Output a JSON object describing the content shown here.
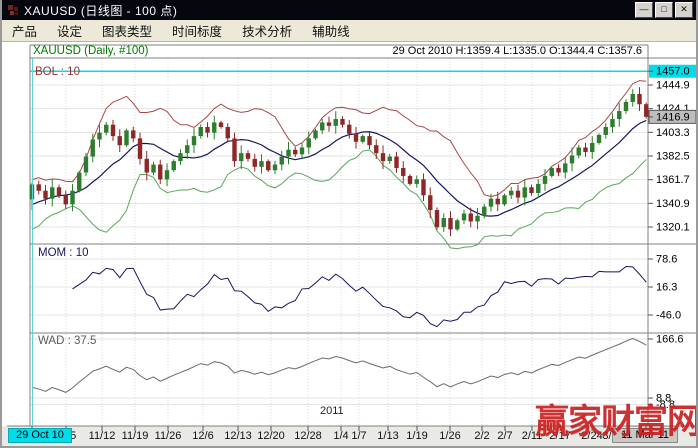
{
  "window": {
    "title": "XAUUSD (日线图 - 100 点)",
    "buttons": {
      "minimize": "—",
      "maximize": "□",
      "close": "✕"
    }
  },
  "menu": {
    "items": [
      "产品",
      "设定",
      "图表类型",
      "时间标度",
      "技术分析",
      "辅助线"
    ]
  },
  "info_bar": {
    "text": "29 Oct 2010 H:1359.4 L:1335.0 O:1344.4 C:1357.6"
  },
  "chart_labels": {
    "symbol": "XAUUSD (Daily, #100)",
    "bol": "BOL : 10",
    "mom": "MOM : 10",
    "wad": "WAD : 37.5"
  },
  "price_axis": {
    "labels": [
      "1457.0",
      "1444.9",
      "1424.1",
      "1403.3",
      "1382.5",
      "1361.7",
      "1340.9",
      "1320.1"
    ],
    "highlight_top": {
      "value": "1457.0",
      "bg": "#00dce8"
    },
    "current": {
      "value": "1416.9",
      "bg": "#bdbdbd"
    }
  },
  "mom_axis": [
    "78.6",
    "16.3",
    "-46.0"
  ],
  "wad_axis": [
    "166.6",
    "8.8",
    "-8.8"
  ],
  "x_axis": {
    "start_label": "29 Oct 10",
    "end_label": "11 Mar 11",
    "year_label": "2011",
    "dates": [
      "11/5",
      "11/12",
      "11/19",
      "11/26",
      "12/6",
      "12/13",
      "12/20",
      "12/28",
      "1/4",
      "1/7",
      "1/13",
      "1/19",
      "1/26",
      "2/2",
      "2/7",
      "2/11",
      "2/17",
      "2/24",
      "3/2"
    ],
    "tick_x": [
      64,
      100,
      133,
      166,
      201,
      236,
      269,
      306,
      339,
      357,
      386,
      415,
      448,
      480,
      503,
      530,
      558,
      590,
      608
    ]
  },
  "watermark": {
    "text": "赢家财富网",
    "color": "#cc1f1f"
  },
  "colors": {
    "up": "#2e7d2e",
    "down": "#8e2727",
    "boll_upper": "#a84848",
    "boll_mid": "#16165e",
    "boll_lower": "#5aa85a",
    "mom": "#16165e",
    "wad": "#6a6a6a",
    "crosshair": "#5fd3d3",
    "cyan": "#00dce8",
    "grid": "#e3e3e3",
    "vgrid": "#d9d9d9",
    "border": "#808080"
  },
  "chart_data": {
    "type": "candlestick",
    "title": "XAUUSD (Daily, #100)",
    "symbol": "XAUUSD",
    "period": "Daily",
    "points_window": 100,
    "first_candle": {
      "date": "29 Oct 2010",
      "o": 1344.4,
      "h": 1359.4,
      "l": 1335.0,
      "c": 1357.6
    },
    "last_close": 1416.9,
    "price_gridlines": [
      1457.0,
      1444.9,
      1424.1,
      1403.3,
      1382.5,
      1361.7,
      1340.9,
      1320.1
    ],
    "mom_gridlines": [
      78.6,
      16.3,
      -46.0
    ],
    "wad_gridlines": [
      166.6,
      8.8,
      -8.8
    ],
    "indicators": {
      "bollinger_period": 10,
      "momentum_period": 10,
      "wad_at_cursor": 37.5
    },
    "pre_closes": [
      1322,
      1328,
      1325,
      1332,
      1338,
      1334,
      1340,
      1346,
      1350,
      1348
    ],
    "closes": [
      1357.6,
      1352,
      1345,
      1355,
      1348,
      1340,
      1352,
      1368,
      1382,
      1397,
      1403,
      1410,
      1400,
      1392,
      1405,
      1398,
      1380,
      1368,
      1375,
      1362,
      1370,
      1378,
      1385,
      1392,
      1400,
      1408,
      1403,
      1412,
      1408,
      1398,
      1378,
      1385,
      1380,
      1373,
      1378,
      1370,
      1375,
      1382,
      1388,
      1384,
      1390,
      1398,
      1405,
      1412,
      1409,
      1415,
      1410,
      1402,
      1395,
      1400,
      1392,
      1385,
      1378,
      1382,
      1372,
      1365,
      1358,
      1362,
      1348,
      1335,
      1320,
      1328,
      1318,
      1326,
      1332,
      1325,
      1330,
      1338,
      1345,
      1340,
      1348,
      1352,
      1346,
      1355,
      1350,
      1358,
      1365,
      1372,
      1368,
      1376,
      1383,
      1390,
      1386,
      1394,
      1401,
      1408,
      1415,
      1422,
      1430,
      1437,
      1428,
      1416.9
    ]
  }
}
